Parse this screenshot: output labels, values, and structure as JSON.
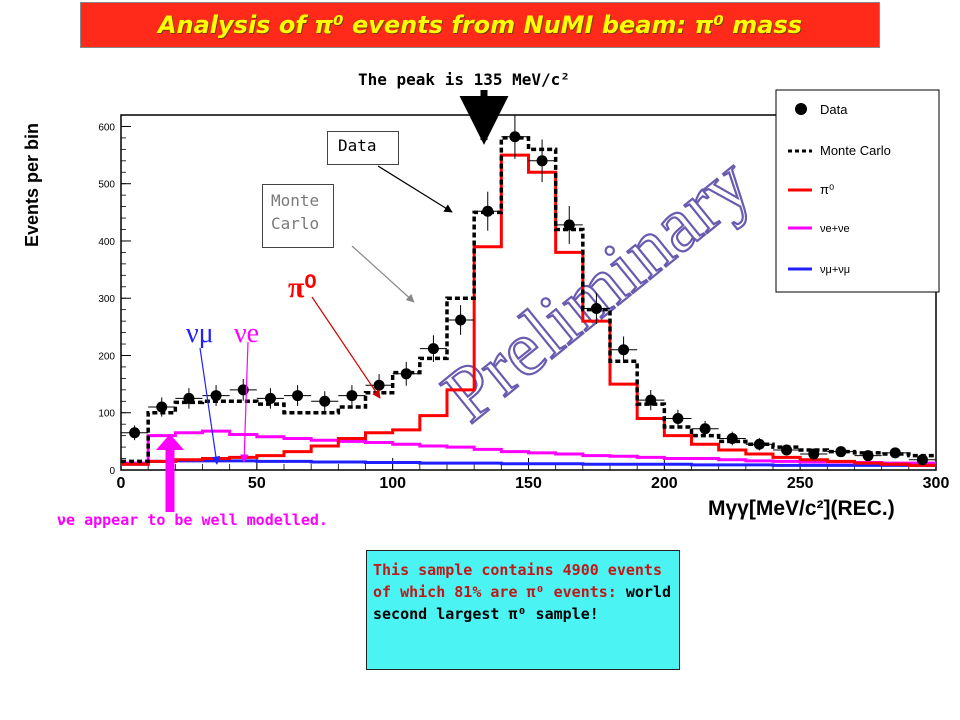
{
  "header": {
    "title": "Analysis of π⁰ events from NuMI beam: π⁰ mass"
  },
  "annotations": {
    "peak": "The peak is 135 MeV/c²",
    "data_callout": "Data",
    "mc_callout": "Monte Carlo",
    "pi0_label": "π⁰",
    "numu_label": "νμ",
    "nue_label": "νe",
    "nue_note": "νe appear to be well modelled.",
    "info_red": "This sample contains 4900 events of which 81% are π⁰ events:",
    "info_black": "world second largest π⁰ sample!"
  },
  "colors": {
    "title_bg": "#ff2a1a",
    "title_text": "#ffff00",
    "pi0": "#ff0000",
    "nue": "#ff00ff",
    "numu": "#2020ff",
    "mc": "#000000",
    "watermark": "#6a5ab0",
    "info_bg": "#4cf3f3"
  },
  "chart_data": {
    "type": "line",
    "xlabel": "Mγγ[MeV/c²](REC.)",
    "ylabel": "Events per bin",
    "watermark": "Preliminary",
    "xlim": [
      0,
      300
    ],
    "ylim": [
      0,
      620
    ],
    "xticks": [
      0,
      50,
      100,
      150,
      200,
      250,
      300
    ],
    "yticks": [
      0,
      100,
      200,
      300,
      400,
      500,
      600
    ],
    "legend_position": "top-right",
    "legend": [
      "Data",
      "Monte Carlo",
      "π⁰",
      "νe+νe",
      "νμ+νμ"
    ],
    "bin_edges": [
      0,
      10,
      20,
      30,
      40,
      50,
      60,
      70,
      80,
      90,
      100,
      110,
      120,
      130,
      140,
      150,
      160,
      170,
      180,
      190,
      200,
      210,
      220,
      230,
      240,
      250,
      260,
      270,
      280,
      290,
      300
    ],
    "series": [
      {
        "name": "Data",
        "style": "points",
        "values": [
          65,
          110,
          125,
          130,
          140,
          125,
          130,
          120,
          130,
          148,
          168,
          212,
          262,
          452,
          582,
          540,
          428,
          282,
          210,
          122,
          90,
          72,
          55,
          45,
          35,
          28,
          32,
          25,
          30,
          18
        ]
      },
      {
        "name": "Monte Carlo",
        "style": "dashed",
        "values": [
          15,
          100,
          118,
          120,
          120,
          115,
          100,
          100,
          110,
          135,
          170,
          195,
          300,
          450,
          580,
          560,
          420,
          280,
          190,
          115,
          75,
          60,
          50,
          45,
          40,
          35,
          32,
          30,
          28,
          25
        ]
      },
      {
        "name": "π⁰",
        "style": "step",
        "values": [
          10,
          15,
          18,
          20,
          22,
          25,
          32,
          42,
          55,
          65,
          70,
          95,
          140,
          390,
          550,
          520,
          380,
          260,
          150,
          90,
          60,
          45,
          35,
          28,
          22,
          18,
          15,
          12,
          10,
          8
        ]
      },
      {
        "name": "νe+νe",
        "style": "step",
        "values": [
          12,
          60,
          65,
          68,
          62,
          58,
          55,
          52,
          50,
          48,
          45,
          42,
          40,
          36,
          32,
          30,
          28,
          25,
          24,
          22,
          20,
          20,
          18,
          16,
          15,
          14,
          14,
          13,
          12,
          12
        ]
      },
      {
        "name": "νμ+νμ",
        "style": "step",
        "values": [
          10,
          15,
          16,
          16,
          16,
          15,
          15,
          14,
          14,
          13,
          13,
          12,
          12,
          12,
          11,
          11,
          11,
          10,
          10,
          10,
          10,
          9,
          9,
          9,
          8,
          8,
          8,
          8,
          8,
          8
        ]
      }
    ]
  }
}
